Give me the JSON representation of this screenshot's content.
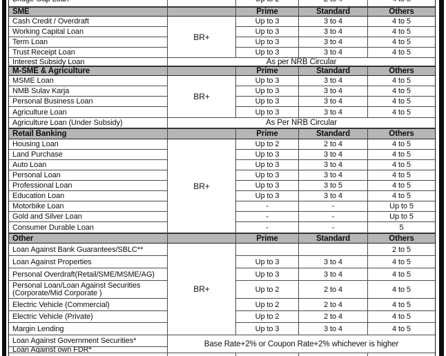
{
  "table": {
    "br_plus_label": "BR+",
    "column_headers": {
      "prime": "Prime",
      "standard": "Standard",
      "others": "Others"
    },
    "partial_top_row": {
      "name": "Bridge Gap Loan",
      "prime": "Up to 2",
      "standard": "2 to 4",
      "others": "4 to 5"
    },
    "sections": [
      {
        "title": "SME",
        "rows": [
          {
            "name": "Cash Credit / Overdraft",
            "prime": "Up to 3",
            "standard": "3 to 4",
            "others": "4 to 5"
          },
          {
            "name": "Working Capital Loan",
            "prime": "Up to 3",
            "standard": "3 to 4",
            "others": "4 to 5"
          },
          {
            "name": "Term Loan",
            "prime": "Up to 3",
            "standard": "3 to 4",
            "others": "4 to 5"
          },
          {
            "name": "Trust Receipt Loan",
            "prime": "Up to 3",
            "standard": "3 to 4",
            "others": "4 to 5"
          }
        ],
        "full_span_rows": [
          {
            "name": "Interest Subsidy Loan",
            "value": "As per NRB Circular"
          }
        ]
      },
      {
        "title": "M-SME & Agriculture",
        "rows": [
          {
            "name": "MSME Loan",
            "prime": "Up to 3",
            "standard": "3 to 4",
            "others": "4 to 5"
          },
          {
            "name": "NMB Sulav Karja",
            "prime": "Up to 3",
            "standard": "3 to 4",
            "others": "4 to 5"
          },
          {
            "name": "Personal Business Loan",
            "prime": "Up to 3",
            "standard": "3 to 4",
            "others": "4 to 5"
          },
          {
            "name": "Agriculture Loan",
            "prime": "Up to 3",
            "standard": "3 to 4",
            "others": "4 to 5"
          }
        ],
        "full_span_rows": [
          {
            "name": "Agriculture Loan (Under Subsidy)",
            "value": "As Per NRB Circular"
          }
        ]
      },
      {
        "title": "Retail Banking",
        "rows": [
          {
            "name": "Housing Loan",
            "prime": "Up to 2",
            "standard": "2 to 4",
            "others": "4 to 5"
          },
          {
            "name": "Land Purchase",
            "prime": "Up to 3",
            "standard": "3 to 4",
            "others": "4 to 5"
          },
          {
            "name": "Auto Loan",
            "prime": "Up to 3",
            "standard": "3 to 4",
            "others": "4 to 5"
          },
          {
            "name": "Personal Loan",
            "prime": "Up to 3",
            "standard": "3 to 4",
            "others": "4 to 5"
          },
          {
            "name": "Professional Loan",
            "prime": "Up to 3",
            "standard": "3 to 5",
            "others": "4 to 5"
          },
          {
            "name": "Education Loan",
            "prime": "Up to 3",
            "standard": "3 to 4",
            "others": "4 to 5"
          },
          {
            "name": "Motorbike Loan",
            "prime": "-",
            "standard": "-",
            "others": "Up to 5"
          },
          {
            "name": "Gold and Silver Loan",
            "prime": "-",
            "standard": "-",
            "others": "Up to 5"
          },
          {
            "name": "Consumer Durable Loan",
            "prime": "-",
            "standard": "-",
            "others": "5"
          }
        ],
        "full_span_rows": []
      },
      {
        "title": "Other",
        "rows": [
          {
            "name": "Loan Against Bank Guarantees/SBLC**",
            "prime": "",
            "standard": "",
            "others": "2 to 5"
          },
          {
            "name": "Loan Against Properties",
            "prime": "Up to 3",
            "standard": "3 to 4",
            "others": "4 to 5"
          },
          {
            "name": "Personal Overdraft(Retail/SME/MSME/AG)",
            "prime": "Up to 3",
            "standard": "3 to 4",
            "others": "4 to 5"
          },
          {
            "name": "Personal Loan/Loan Against Securities (Corporate/Mid Corporate )",
            "prime": "Up to 2",
            "standard": "2 to 4",
            "others": "4 to 5"
          },
          {
            "name": "Electric Vehicle (Commercial)",
            "prime": "Up to 2",
            "standard": "2 to 4",
            "others": "4 to 5"
          },
          {
            "name": "Electric Vehicle (Private)",
            "prime": "Up to 2",
            "standard": "2 to 4",
            "others": "4 to 5"
          },
          {
            "name": "Margin Lending",
            "prime": "Up to 3",
            "standard": "3 to 4",
            "others": "4 to 5"
          }
        ],
        "full_span_rows": [],
        "double_span_note": {
          "names": [
            "Loan Against Government Securities*",
            "Loan Against own FDR*"
          ],
          "value": "Base Rate+2% or Coupon Rate+2% whichever is higher"
        }
      }
    ]
  }
}
